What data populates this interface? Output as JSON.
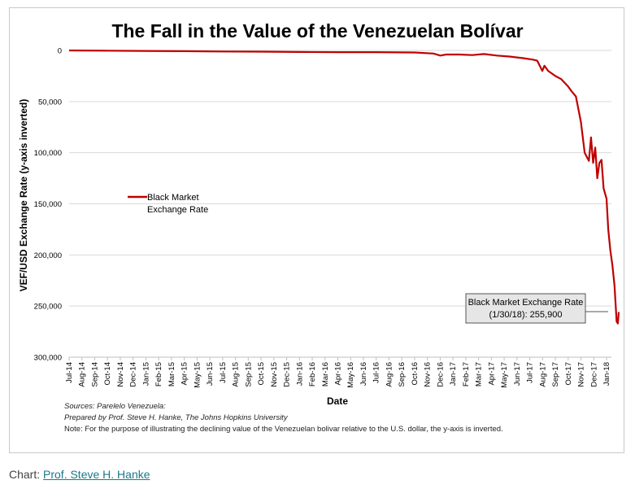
{
  "chart_data": {
    "type": "line",
    "title": "The Fall in the Value of the Venezuelan Bolívar",
    "xlabel": "Date",
    "ylabel": "VEF/USD Exchange Rate (y-axis inverted)",
    "y_inverted": true,
    "ylim": [
      0,
      300000
    ],
    "yticks": [
      0,
      50000,
      100000,
      150000,
      200000,
      250000,
      300000
    ],
    "ytick_labels": [
      "0",
      "50,000",
      "100,000",
      "150,000",
      "200,000",
      "250,000",
      "300,000"
    ],
    "xticks": [
      "Jul-14",
      "Aug-14",
      "Sep-14",
      "Oct-14",
      "Nov-14",
      "Dec-14",
      "Jan-15",
      "Feb-15",
      "Mar-15",
      "Apr-15",
      "May-15",
      "Jun-15",
      "Jul-15",
      "Aug-15",
      "Sep-15",
      "Oct-15",
      "Nov-15",
      "Dec-15",
      "Jan-16",
      "Feb-16",
      "Mar-16",
      "Apr-16",
      "May-16",
      "Jun-16",
      "Jul-16",
      "Aug-16",
      "Sep-16",
      "Oct-16",
      "Nov-16",
      "Dec-16",
      "Jan-17",
      "Feb-17",
      "Mar-17",
      "Apr-17",
      "May-17",
      "Jun-17",
      "Jul-17",
      "Aug-17",
      "Sep-17",
      "Oct-17",
      "Nov-17",
      "Dec-17",
      "Jan-18"
    ],
    "grid": true,
    "legend_position": "left",
    "series": [
      {
        "name": "Black Market Exchange Rate",
        "color": "#c00000",
        "x": [
          "2014-07-01",
          "2014-10-01",
          "2015-01-01",
          "2015-04-01",
          "2015-07-01",
          "2015-10-01",
          "2016-01-01",
          "2016-04-01",
          "2016-07-01",
          "2016-10-01",
          "2016-11-15",
          "2016-12-01",
          "2016-12-15",
          "2017-01-15",
          "2017-02-15",
          "2017-03-15",
          "2017-04-15",
          "2017-05-15",
          "2017-06-15",
          "2017-07-10",
          "2017-07-20",
          "2017-08-01",
          "2017-08-06",
          "2017-08-15",
          "2017-09-01",
          "2017-09-15",
          "2017-10-01",
          "2017-10-10",
          "2017-10-20",
          "2017-11-01",
          "2017-11-10",
          "2017-11-20",
          "2017-11-25",
          "2017-11-30",
          "2017-12-05",
          "2017-12-10",
          "2017-12-15",
          "2017-12-20",
          "2017-12-25",
          "2018-01-01",
          "2018-01-05",
          "2018-01-10",
          "2018-01-15",
          "2018-01-20",
          "2018-01-25",
          "2018-01-28",
          "2018-01-30"
        ],
        "values": [
          0,
          200,
          500,
          700,
          1000,
          1200,
          1500,
          1700,
          1700,
          2000,
          3000,
          5000,
          4000,
          4000,
          4500,
          3500,
          5000,
          6000,
          7500,
          9000,
          10000,
          20000,
          15000,
          20000,
          25000,
          28000,
          35000,
          40000,
          45000,
          70000,
          100000,
          108000,
          85000,
          110000,
          95000,
          125000,
          110000,
          107000,
          135000,
          145000,
          175000,
          195000,
          210000,
          230000,
          265000,
          267000,
          255900
        ]
      }
    ],
    "annotation": {
      "line1": "Black Market Exchange Rate",
      "line2": "(1/30/18): 255,900",
      "x": "2018-01-30",
      "y": 255900
    },
    "sources": {
      "line1": "Sources: Parelelo Venezuela:",
      "line2": "Prepared by Prof. Steve H. Hanke, The Johns Hopkins University",
      "line3": "Note: For the purpose of illustrating the declining value of the Venezuelan bolivar relative to the U.S. dollar, the y-axis is inverted."
    }
  },
  "legend": {
    "line1": "Black Market",
    "line2": "Exchange Rate"
  },
  "caption": {
    "prefix": "Chart: ",
    "link_text": "Prof. Steve H. Hanke"
  }
}
